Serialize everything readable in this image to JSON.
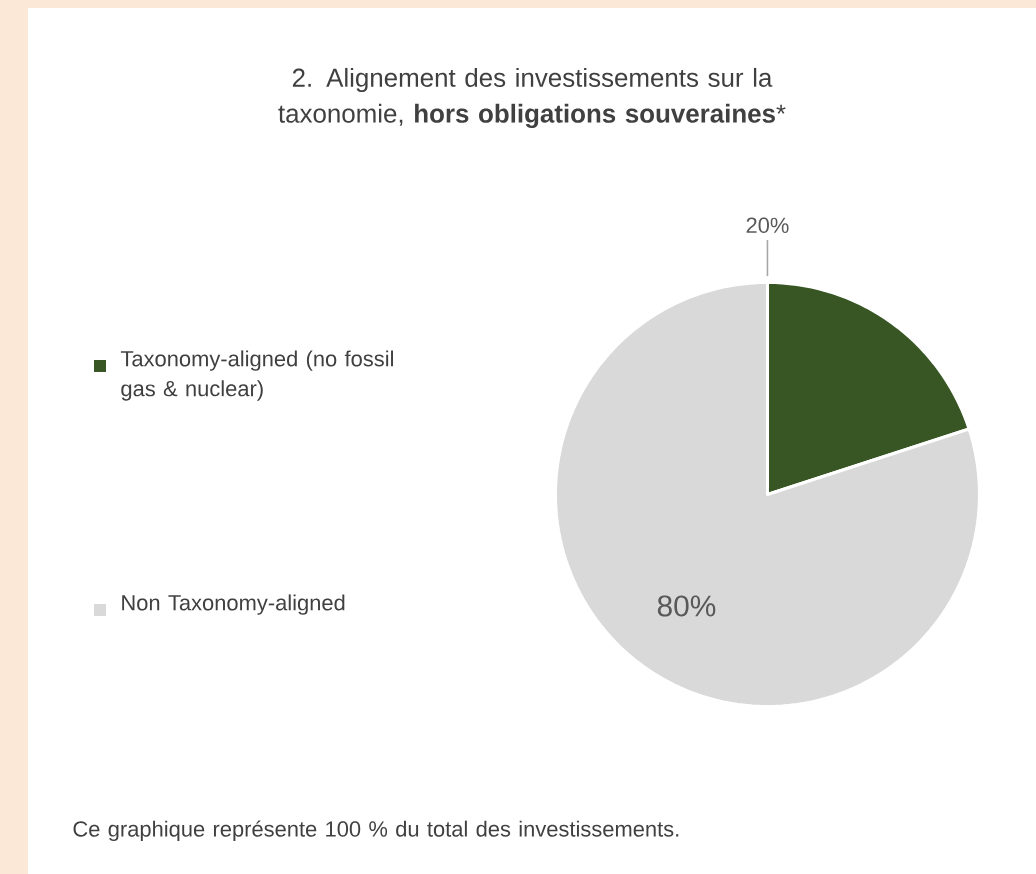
{
  "chart_data": {
    "type": "pie",
    "title": "2. Alignement des investissements sur la taxonomie, **hors obligations souveraines***",
    "categories": [
      "Taxonomy-aligned (no fossil gas & nuclear)",
      "Non Taxonomy-aligned"
    ],
    "values": [
      20,
      80
    ],
    "colors": [
      "#375623",
      "#d9d9d9"
    ],
    "value_labels": [
      "20%",
      "80%"
    ],
    "legend": "left",
    "annotations": [
      "Ce graphique représente 100 % du total des investissements."
    ]
  }
}
